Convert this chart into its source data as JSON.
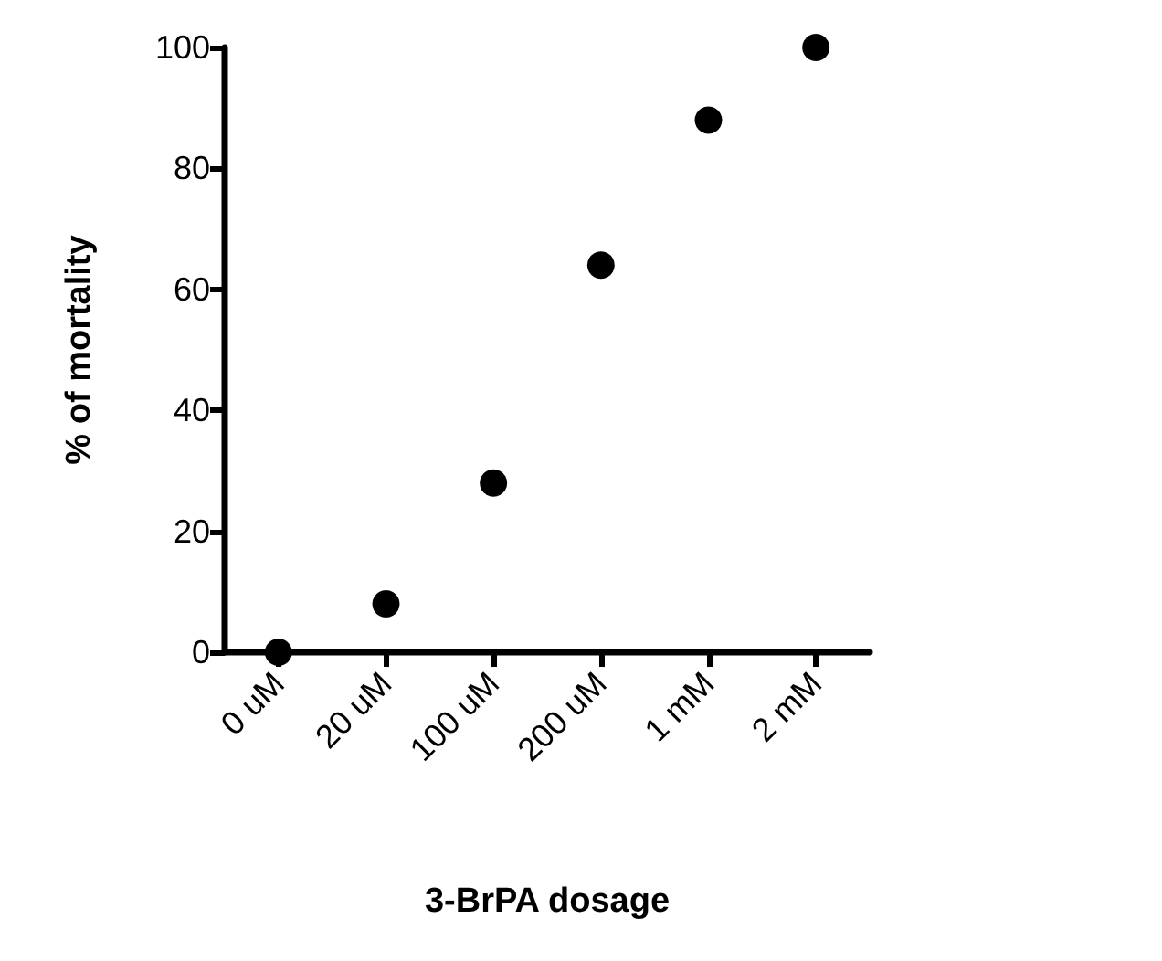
{
  "chart_data": {
    "type": "scatter",
    "xlabel": "3-BrPA dosage",
    "ylabel": "% of mortality",
    "categories": [
      "0 uM",
      "20 uM",
      "100 uM",
      "200 uM",
      "1 mM",
      "2 mM"
    ],
    "series": [
      {
        "color": "#000000",
        "values": [
          0,
          8,
          28,
          64,
          88,
          100
        ]
      }
    ],
    "ylim": [
      0,
      100
    ],
    "yticks": [
      0,
      20,
      40,
      60,
      80,
      100
    ],
    "marker": "circle"
  }
}
